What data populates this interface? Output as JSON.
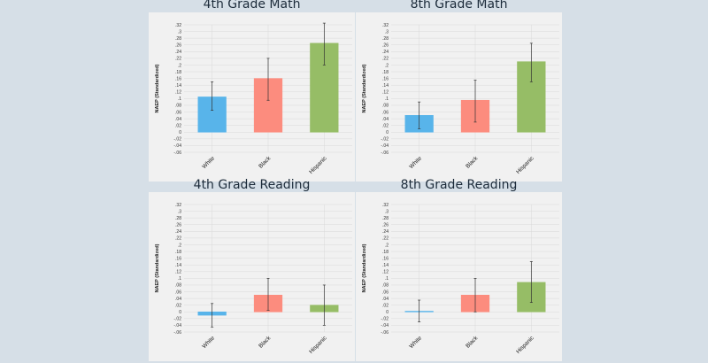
{
  "colors": {
    "white": "#58b4ea",
    "black": "#fc8c7e",
    "hispanic": "#96bd66",
    "error_bar": "#333333",
    "grid": "#d9d9d9"
  },
  "chart_data": [
    {
      "type": "bar",
      "title": "4th Grade Math",
      "ylabel": "NAEP (Standardized)",
      "categories": [
        "White",
        "Black",
        "Hispanic"
      ],
      "values": [
        0.105,
        0.16,
        0.265
      ],
      "error_low": [
        0.065,
        0.095,
        0.2
      ],
      "error_high": [
        0.15,
        0.22,
        0.325
      ],
      "ylim": [
        -0.06,
        0.32
      ],
      "yticks": [
        ".32",
        ".3",
        ".28",
        ".26",
        ".24",
        ".22",
        ".2",
        ".18",
        ".16",
        ".14",
        ".12",
        ".1",
        ".08",
        ".06",
        ".04",
        ".02",
        "0",
        "-.02",
        "-.04",
        "-.06"
      ]
    },
    {
      "type": "bar",
      "title": "8th Grade Math",
      "ylabel": "NAEP (Standardized)",
      "categories": [
        "White",
        "Black",
        "Hispanic"
      ],
      "values": [
        0.05,
        0.095,
        0.21
      ],
      "error_low": [
        0.01,
        0.03,
        0.15
      ],
      "error_high": [
        0.09,
        0.155,
        0.265
      ],
      "ylim": [
        -0.06,
        0.32
      ],
      "yticks": [
        ".32",
        ".3",
        ".28",
        ".26",
        ".24",
        ".22",
        ".2",
        ".18",
        ".16",
        ".14",
        ".12",
        ".1",
        ".08",
        ".06",
        ".04",
        ".02",
        "0",
        "-.02",
        "-.04",
        "-.06"
      ]
    },
    {
      "type": "bar",
      "title": "4th Grade Reading",
      "ylabel": "NAEP (Standardized)",
      "categories": [
        "White",
        "Black",
        "Hispanic"
      ],
      "values": [
        -0.01,
        0.05,
        0.02
      ],
      "error_low": [
        -0.045,
        0.005,
        -0.04
      ],
      "error_high": [
        0.025,
        0.1,
        0.08
      ],
      "ylim": [
        -0.06,
        0.32
      ],
      "yticks": [
        ".32",
        ".3",
        ".28",
        ".26",
        ".24",
        ".22",
        ".2",
        ".18",
        ".16",
        ".14",
        ".12",
        ".1",
        ".08",
        ".06",
        ".04",
        ".02",
        "0",
        "-.02",
        "-.04",
        "-.06"
      ]
    },
    {
      "type": "bar",
      "title": "8th Grade Reading",
      "ylabel": "NAEP (Standardized)",
      "categories": [
        "White",
        "Black",
        "Hispanic"
      ],
      "values": [
        0.002,
        0.05,
        0.088
      ],
      "error_low": [
        -0.03,
        0.0,
        0.028
      ],
      "error_high": [
        0.035,
        0.1,
        0.15
      ],
      "ylim": [
        -0.06,
        0.32
      ],
      "yticks": [
        ".32",
        ".3",
        ".28",
        ".26",
        ".24",
        ".22",
        ".2",
        ".18",
        ".16",
        ".14",
        ".12",
        ".1",
        ".08",
        ".06",
        ".04",
        ".02",
        "0",
        "-.02",
        "-.04",
        "-.06"
      ]
    }
  ]
}
